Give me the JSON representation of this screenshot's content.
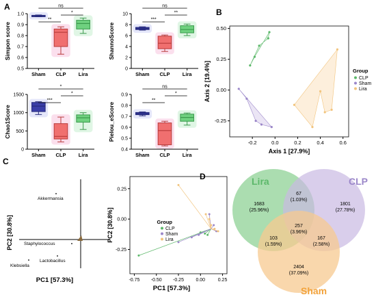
{
  "panel_letters": [
    "A",
    "B",
    "C",
    "D"
  ],
  "chart_data": [
    {
      "panel": "A",
      "type": "box",
      "ylabel": "Simpon score",
      "categories": [
        "Sham",
        "CLP",
        "Lira"
      ],
      "ylim": [
        0.5,
        1.0
      ],
      "yticks": [
        "0.5",
        "0.6",
        "0.7",
        "0.8",
        "0.9",
        "1.0"
      ],
      "boxes": [
        {
          "q1": 0.975,
          "median": 0.98,
          "q3": 0.985,
          "min": 0.972,
          "max": 0.988
        },
        {
          "q1": 0.7,
          "median": 0.83,
          "q3": 0.86,
          "min": 0.63,
          "max": 0.88
        },
        {
          "q1": 0.86,
          "median": 0.91,
          "q3": 0.94,
          "min": 0.82,
          "max": 0.96
        }
      ],
      "significance": [
        {
          "from": 0,
          "to": 1,
          "label": "**"
        },
        {
          "from": 1,
          "to": 2,
          "label": "*"
        },
        {
          "from": 0,
          "to": 2,
          "label": "ns"
        }
      ]
    },
    {
      "panel": "A",
      "type": "box",
      "ylabel": "ShannoScore",
      "categories": [
        "Sham",
        "CLP",
        "Lira"
      ],
      "ylim": [
        0,
        10
      ],
      "yticks": [
        "0",
        "2",
        "4",
        "6",
        "8",
        "10"
      ],
      "boxes": [
        {
          "q1": 7.1,
          "median": 7.3,
          "q3": 7.5,
          "min": 7.0,
          "max": 7.6
        },
        {
          "q1": 3.6,
          "median": 4.6,
          "q3": 5.9,
          "min": 3.1,
          "max": 6.1
        },
        {
          "q1": 6.5,
          "median": 7.1,
          "q3": 7.8,
          "min": 6.0,
          "max": 8.1
        }
      ],
      "significance": [
        {
          "from": 0,
          "to": 1,
          "label": "***"
        },
        {
          "from": 1,
          "to": 2,
          "label": "**"
        },
        {
          "from": 0,
          "to": 2,
          "label": "ns"
        }
      ]
    },
    {
      "panel": "A",
      "type": "box",
      "ylabel": "Chao1Score",
      "categories": [
        "Sham",
        "CLP",
        "Lira"
      ],
      "ylim": [
        0,
        1500
      ],
      "yticks": [
        "0",
        "500",
        "1000",
        "1500"
      ],
      "boxes": [
        {
          "q1": 1030,
          "median": 1180,
          "q3": 1280,
          "min": 950,
          "max": 1300
        },
        {
          "q1": 280,
          "median": 350,
          "q3": 700,
          "min": 200,
          "max": 880
        },
        {
          "q1": 740,
          "median": 860,
          "q3": 940,
          "min": 540,
          "max": 1000
        }
      ],
      "significance": [
        {
          "from": 0,
          "to": 1,
          "label": "***"
        },
        {
          "from": 1,
          "to": 2,
          "label": "*"
        },
        {
          "from": 0,
          "to": 2,
          "label": "*"
        }
      ]
    },
    {
      "panel": "A",
      "type": "box",
      "ylabel": "Pielou_eScore",
      "categories": [
        "Sham",
        "CLP",
        "Lira"
      ],
      "ylim": [
        0.4,
        0.9
      ],
      "yticks": [
        "0.4",
        "0.5",
        "0.6",
        "0.7",
        "0.8",
        "0.9"
      ],
      "boxes": [
        {
          "q1": 0.715,
          "median": 0.725,
          "q3": 0.735,
          "min": 0.705,
          "max": 0.74
        },
        {
          "q1": 0.44,
          "median": 0.57,
          "q3": 0.64,
          "min": 0.43,
          "max": 0.655
        },
        {
          "q1": 0.655,
          "median": 0.69,
          "q3": 0.72,
          "min": 0.62,
          "max": 0.73
        }
      ],
      "significance": [
        {
          "from": 0,
          "to": 1,
          "label": "**"
        },
        {
          "from": 1,
          "to": 2,
          "label": "*"
        },
        {
          "from": 0,
          "to": 2,
          "label": "ns"
        }
      ]
    },
    {
      "panel": "B",
      "type": "scatter",
      "xlabel": "Axis 1 [27.9%]",
      "ylabel": "Axis 2 [19.4%]",
      "xlim": [
        -0.4,
        0.65
      ],
      "ylim": [
        -0.38,
        0.52
      ],
      "xticks": [
        -0.2,
        0.0,
        0.2,
        0.4,
        0.6
      ],
      "xtick_labels": [
        "-0.2",
        "0.0",
        "0.2",
        "0.4",
        "0.6"
      ],
      "yticks": [
        -0.25,
        0.0,
        0.25,
        0.5
      ],
      "ytick_labels": [
        "-0.25",
        "0.00",
        "0.25",
        "0.50"
      ],
      "legend_title": "Group",
      "series": [
        {
          "name": "CLP",
          "color": "#5cb86a",
          "fill": "#c8e9cc",
          "points": [
            [
              -0.22,
              0.2
            ],
            [
              -0.14,
              0.36
            ],
            [
              -0.06,
              0.42
            ],
            [
              -0.05,
              0.47
            ],
            [
              -0.18,
              0.27
            ]
          ]
        },
        {
          "name": "Sham",
          "color": "#9b87c9",
          "fill": "#ddd4ef",
          "points": [
            [
              -0.32,
              0.01
            ],
            [
              -0.25,
              -0.07
            ],
            [
              -0.17,
              -0.25
            ],
            [
              -0.12,
              -0.28
            ],
            [
              -0.03,
              -0.3
            ]
          ]
        },
        {
          "name": "Lira",
          "color": "#f2c47d",
          "fill": "#fbe5c4",
          "points": [
            [
              0.17,
              -0.12
            ],
            [
              0.33,
              -0.3
            ],
            [
              0.4,
              -0.01
            ],
            [
              0.44,
              -0.18
            ],
            [
              0.5,
              -0.16
            ],
            [
              0.55,
              0.33
            ]
          ]
        }
      ]
    },
    {
      "panel": "C",
      "type": "biplot",
      "xlabel": "PC1 [57.3%]",
      "ylabel": "PC2 [30.8%]",
      "labels": [
        "Akkermansia",
        "Staphylococcus",
        "Lactobacillus",
        "Klebsiella"
      ]
    },
    {
      "panel": "C",
      "type": "scatter",
      "xlabel": "PC1 [57.3%]",
      "ylabel": "PC2 [30.8%]",
      "xlim": [
        -0.8,
        0.3
      ],
      "ylim": [
        -0.45,
        0.35
      ],
      "xticks": [
        -0.75,
        -0.5,
        -0.25,
        0.0,
        0.25
      ],
      "xtick_labels": [
        "-0.75",
        "-0.50",
        "-0.25",
        "0.00",
        "0.25"
      ],
      "yticks": [
        -0.25,
        0.0,
        0.25
      ],
      "ytick_labels": [
        "-0.25",
        "0.00",
        "0.25"
      ],
      "legend_title": "Group",
      "series": [
        {
          "name": "CLP",
          "color": "#5cb86a",
          "points": [
            [
              -0.7,
              -0.3
            ],
            [
              0.0,
              -0.11
            ],
            [
              0.05,
              -0.12
            ],
            [
              0.08,
              -0.13
            ]
          ]
        },
        {
          "name": "Sham",
          "color": "#9b87c9",
          "points": [
            [
              -0.25,
              -0.19
            ],
            [
              -0.1,
              -0.15
            ],
            [
              -0.02,
              -0.13
            ],
            [
              0.1,
              0.04
            ],
            [
              0.15,
              -0.05
            ],
            [
              0.18,
              -0.1
            ]
          ]
        },
        {
          "name": "Lira",
          "color": "#f2c47d",
          "points": [
            [
              -0.25,
              0.28
            ],
            [
              0.06,
              0.04
            ],
            [
              0.1,
              0.0
            ],
            [
              0.12,
              -0.05
            ],
            [
              0.16,
              -0.08
            ],
            [
              0.2,
              -0.1
            ]
          ]
        }
      ]
    },
    {
      "panel": "D",
      "type": "venn",
      "sets": [
        {
          "name": "Lira",
          "color": "#5cb86a"
        },
        {
          "name": "CLP",
          "color": "#9b87c9"
        },
        {
          "name": "Sham",
          "color": "#f2a23a"
        }
      ],
      "regions": [
        {
          "id": "lira_only",
          "count": "1683",
          "pct": "(25.96%)"
        },
        {
          "id": "lira_clp",
          "count": "67",
          "pct": "(1.03%)"
        },
        {
          "id": "clp_only",
          "count": "1801",
          "pct": "(27.78%)"
        },
        {
          "id": "all",
          "count": "257",
          "pct": "(3.96%)"
        },
        {
          "id": "lira_sham",
          "count": "103",
          "pct": "(1.59%)"
        },
        {
          "id": "clp_sham",
          "count": "167",
          "pct": "(2.58%)"
        },
        {
          "id": "sham_only",
          "count": "2404",
          "pct": "(37.09%)"
        }
      ]
    }
  ]
}
